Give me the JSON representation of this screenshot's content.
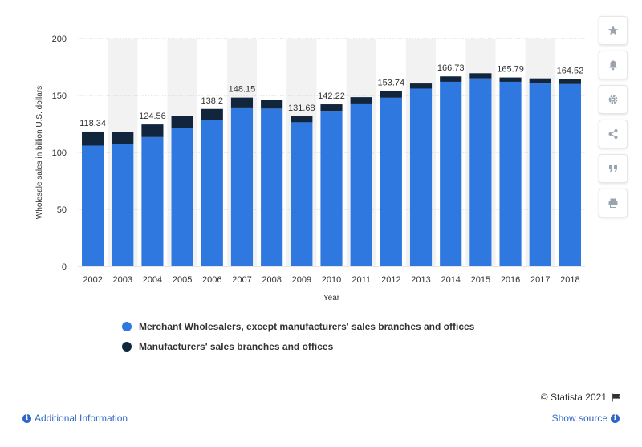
{
  "chart_data": {
    "type": "bar",
    "stacked": true,
    "title": "",
    "xlabel": "Year",
    "ylabel": "Wholesale sales in billion U.S. dollars",
    "ylim": [
      0,
      200
    ],
    "yticks": [
      0,
      50,
      100,
      150,
      200
    ],
    "grid": true,
    "legend_position": "bottom",
    "categories": [
      "2002",
      "2003",
      "2004",
      "2005",
      "2006",
      "2007",
      "2008",
      "2009",
      "2010",
      "2011",
      "2012",
      "2013",
      "2014",
      "2015",
      "2016",
      "2017",
      "2018"
    ],
    "series": [
      {
        "name": "Merchant Wholesalers, except manufacturers' sales branches and offices",
        "color": "#2f78e0",
        "values": [
          106.0,
          107.5,
          113.5,
          121.5,
          128.5,
          139.5,
          138.5,
          126.5,
          136.5,
          143.0,
          148.0,
          156.0,
          162.0,
          165.0,
          162.0,
          160.5,
          160.0
        ]
      },
      {
        "name": "Manufacturers' sales branches and offices",
        "color": "#11253d",
        "values": [
          12.34,
          10.5,
          11.06,
          10.5,
          9.7,
          8.65,
          7.5,
          5.18,
          5.72,
          5.5,
          5.74,
          4.5,
          4.73,
          4.5,
          3.79,
          4.5,
          4.52
        ]
      }
    ],
    "data_labels": [
      "118.34",
      "",
      "124.56",
      "",
      "138.2",
      "148.15",
      "",
      "131.68",
      "142.22",
      "",
      "153.74",
      "",
      "166.73",
      "",
      "165.79",
      "",
      "164.52"
    ]
  },
  "footer": {
    "copyright": "© Statista 2021",
    "additional_info": "Additional Information",
    "show_source": "Show source"
  },
  "sidebar_icons": [
    "star-icon",
    "bell-icon",
    "gear-icon",
    "share-icon",
    "quote-icon",
    "print-icon"
  ],
  "colors": {
    "band": "#f2f2f2",
    "grid": "#cccccc",
    "link": "#2f67c8"
  }
}
